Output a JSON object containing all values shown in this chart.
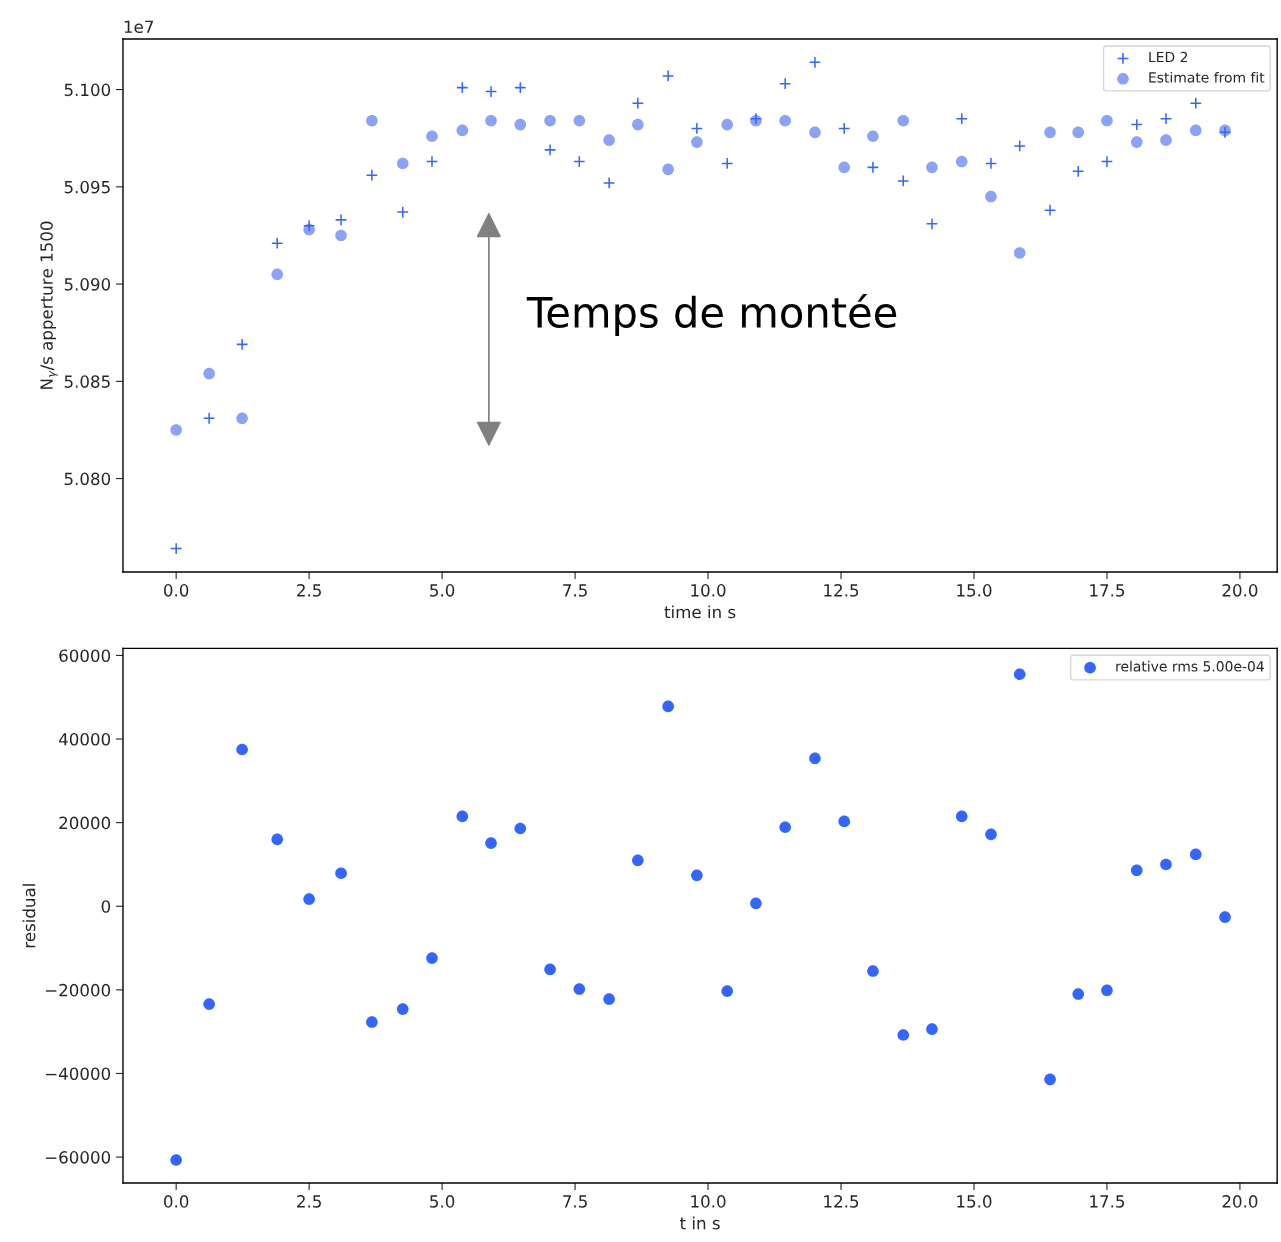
{
  "chart_data": [
    {
      "type": "scatter",
      "xlabel": "time in s",
      "ylabel": "N$_{γ}$/s apperture 1500",
      "legend": "top right",
      "grid": false,
      "x": [
        0,
        0.62,
        1.24,
        1.9,
        2.5,
        3.1,
        3.68,
        4.26,
        4.81,
        5.38,
        5.92,
        6.47,
        7.03,
        7.58,
        8.14,
        8.68,
        9.25,
        9.79,
        10.36,
        10.9,
        11.45,
        12.01,
        12.56,
        13.1,
        13.67,
        14.21,
        14.77,
        15.32,
        15.86,
        16.43,
        16.96,
        17.5,
        18.06,
        18.61,
        19.17,
        19.72
      ],
      "series": [
        {
          "name": "LED 2",
          "color": "#3366ff",
          "marker": "cross",
          "values": [
            5.0764,
            5.0831,
            5.0869,
            5.0921,
            5.093,
            5.0933,
            5.0956,
            5.0937,
            5.0963,
            5.1001,
            5.0999,
            5.1001,
            5.0969,
            5.0963,
            5.0952,
            5.0993,
            5.1007,
            5.098,
            5.0962,
            5.0985,
            5.1003,
            5.1014,
            5.098,
            5.096,
            5.0953,
            5.0931,
            5.0985,
            5.0962,
            5.0971,
            5.0938,
            5.0958,
            5.0963,
            5.0982,
            5.0985,
            5.0993,
            5.0978
          ]
        },
        {
          "name": "Estimate from fit",
          "color": "#8ca2f7",
          "marker": "circle",
          "values": [
            5.0825,
            5.0854,
            5.0831,
            5.0905,
            5.0928,
            5.0925,
            5.0984,
            5.0962,
            5.0976,
            5.0979,
            5.0984,
            5.0982,
            5.0984,
            5.0984,
            5.0974,
            5.0982,
            5.0959,
            5.0973,
            5.0982,
            5.0984,
            5.0984,
            5.0978,
            5.096,
            5.0976,
            5.0984,
            5.096,
            5.0963,
            5.0945,
            5.0916,
            5.0978,
            5.0978,
            5.0984,
            5.0973,
            5.0974,
            5.0979,
            5.0979
          ]
        }
      ],
      "xlim": [
        -1.0,
        20.7
      ],
      "xticks": [
        {
          "value": 0,
          "label": "0.0"
        },
        2.5,
        {
          "value": 5,
          "label": "5.0"
        },
        7.5,
        {
          "value": 10,
          "label": "10.0"
        },
        12.5,
        {
          "value": 15,
          "label": "15.0"
        },
        17.5,
        {
          "value": 20,
          "label": "20.0"
        }
      ],
      "ylim": [
        5.0752,
        5.1026
      ],
      "yticks": [
        {
          "value": 5.08,
          "label": "5.080"
        },
        5.085,
        {
          "value": 5.09,
          "label": "5.090"
        },
        5.095,
        {
          "value": 5.1,
          "label": "5.100"
        }
      ],
      "annotations": [
        "1e7",
        "Temps de montée"
      ]
    },
    {
      "type": "scatter",
      "xlabel": "t in s",
      "ylabel": "residual",
      "legend": "top right",
      "grid": false,
      "x": [
        0,
        0.62,
        1.24,
        1.9,
        2.5,
        3.1,
        3.68,
        4.26,
        4.81,
        5.38,
        5.92,
        6.47,
        7.03,
        7.58,
        8.14,
        8.68,
        9.25,
        9.79,
        10.36,
        10.9,
        11.45,
        12.01,
        12.56,
        13.1,
        13.67,
        14.21,
        14.77,
        15.32,
        15.86,
        16.43,
        16.96,
        17.5,
        18.06,
        18.61,
        19.17,
        19.72
      ],
      "series": [
        {
          "name": "relative rms 5.00e-04",
          "color": "#3366ff",
          "marker": "circle",
          "values": [
            -60700,
            -23400,
            37500,
            16000,
            1700,
            7900,
            -27700,
            -24600,
            -12400,
            21500,
            15100,
            18600,
            -15100,
            -19800,
            -22200,
            11000,
            47800,
            7400,
            -20300,
            700,
            18900,
            35400,
            20300,
            -15500,
            -30800,
            -29400,
            21500,
            17200,
            55500,
            -41400,
            -21000,
            -20100,
            8600,
            10000,
            12400,
            -2600
          ]
        }
      ],
      "xlim": [
        -1.0,
        20.7
      ],
      "xticks": [
        {
          "value": 0,
          "label": "0.0"
        },
        2.5,
        {
          "value": 5,
          "label": "5.0"
        },
        7.5,
        {
          "value": 10,
          "label": "10.0"
        },
        12.5,
        {
          "value": 15,
          "label": "15.0"
        },
        17.5,
        {
          "value": 20,
          "label": "20.0"
        }
      ],
      "ylim": [
        -66200,
        61700
      ],
      "yticks": [
        {
          "value": -60000,
          "label": "−60000"
        },
        {
          "value": -40000,
          "label": "−40000"
        },
        {
          "value": -20000,
          "label": "−20000"
        },
        0,
        20000,
        40000,
        60000
      ]
    }
  ]
}
